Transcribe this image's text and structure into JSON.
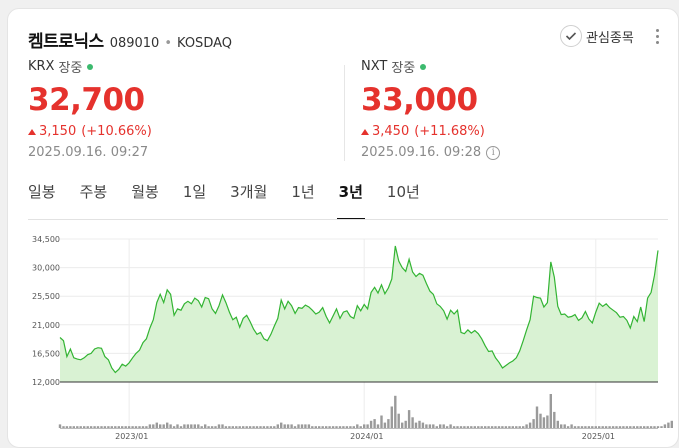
{
  "header": {
    "name": "켐트로닉스",
    "code": "089010",
    "separator": "•",
    "market": "KOSDAQ",
    "watch_label": "관심종목"
  },
  "krx": {
    "exchange": "KRX",
    "status": "장중",
    "price": "32,700",
    "change": "3,150",
    "change_pct": "(+10.66%)",
    "time": "2025.09.16. 09:27"
  },
  "nxt": {
    "exchange": "NXT",
    "status": "장중",
    "price": "33,000",
    "change": "3,450",
    "change_pct": "(+11.68%)",
    "time": "2025.09.16. 09:28",
    "info_glyph": "i"
  },
  "tabs": [
    {
      "label": "일봉"
    },
    {
      "label": "주봉"
    },
    {
      "label": "월봉"
    },
    {
      "label": "1일"
    },
    {
      "label": "3개월"
    },
    {
      "label": "1년"
    },
    {
      "label": "3년",
      "active": true
    },
    {
      "label": "10년"
    }
  ],
  "colors": {
    "up": "#e5322d",
    "line": "#33b433",
    "area": "#d9f2d3",
    "volume": "#9a9a9a"
  },
  "chart_data": {
    "type": "area",
    "ylim": [
      12000,
      34500
    ],
    "yticks": [
      "34,500",
      "30,000",
      "25,500",
      "21,000",
      "16,500",
      "12,000"
    ],
    "ytick_values": [
      34500,
      30000,
      25500,
      21000,
      16500,
      12000
    ],
    "xticks": [
      "2023/01",
      "2024/01",
      "2025/01"
    ],
    "xtick_index": [
      20,
      88,
      155
    ],
    "price_values": [
      19000,
      18500,
      16000,
      17200,
      15800,
      15600,
      15500,
      15800,
      16300,
      16500,
      17200,
      17400,
      17300,
      16000,
      15500,
      14200,
      13500,
      14000,
      14800,
      14500,
      15000,
      15800,
      16500,
      17000,
      18200,
      18800,
      20500,
      21800,
      24500,
      25800,
      24500,
      26500,
      25800,
      22500,
      23500,
      23300,
      24300,
      24700,
      24300,
      25200,
      24800,
      23800,
      25300,
      25100,
      23500,
      22800,
      24000,
      25700,
      24500,
      23000,
      21800,
      22200,
      20600,
      22000,
      22500,
      21500,
      20300,
      19500,
      19800,
      18800,
      18500,
      19500,
      20800,
      22000,
      24900,
      23500,
      24700,
      24000,
      22800,
      23700,
      23600,
      24100,
      23800,
      23300,
      22700,
      23000,
      23700,
      22300,
      21300,
      22400,
      23500,
      22000,
      23000,
      23200,
      22300,
      22000,
      24000,
      23200,
      24200,
      23500,
      26100,
      26900,
      26000,
      27300,
      25900,
      26800,
      28200,
      33400,
      31000,
      30000,
      29400,
      31300,
      29300,
      28600,
      29100,
      28800,
      27500,
      26300,
      25800,
      24300,
      23900,
      23200,
      21900,
      23300,
      22700,
      23300,
      19800,
      19600,
      20200,
      19700,
      20100,
      19600,
      18800,
      17700,
      16800,
      16900,
      15800,
      15100,
      14200,
      14600,
      15000,
      15300,
      15800,
      16900,
      18500,
      20200,
      21800,
      25500,
      25300,
      25200,
      23800,
      24500,
      30900,
      28500,
      23900,
      22600,
      22700,
      22200,
      22300,
      22600,
      21700,
      22100,
      23100,
      21900,
      21300,
      23000,
      24400,
      23900,
      24300,
      23700,
      23300,
      22900,
      22200,
      22300,
      21700,
      20500,
      22300,
      21500,
      23800,
      21500,
      25200,
      26100,
      28800,
      32700
    ],
    "volume_values": [
      2,
      1,
      1,
      1,
      1,
      1,
      1,
      1,
      1,
      1,
      1,
      1,
      1,
      1,
      1,
      1,
      1,
      1,
      1,
      1,
      1,
      1,
      1,
      1,
      1,
      1,
      2,
      2,
      3,
      2,
      2,
      3,
      2,
      1,
      2,
      1,
      2,
      2,
      2,
      2,
      2,
      1,
      2,
      1,
      1,
      1,
      2,
      2,
      1,
      1,
      1,
      1,
      1,
      1,
      1,
      1,
      1,
      1,
      1,
      1,
      1,
      1,
      1,
      2,
      3,
      2,
      2,
      2,
      1,
      2,
      2,
      2,
      2,
      1,
      1,
      1,
      1,
      1,
      1,
      1,
      1,
      1,
      1,
      1,
      1,
      1,
      2,
      1,
      2,
      2,
      4,
      5,
      2,
      7,
      3,
      5,
      12,
      18,
      8,
      3,
      4,
      10,
      6,
      3,
      4,
      3,
      2,
      2,
      2,
      1,
      2,
      2,
      1,
      2,
      1,
      1,
      1,
      1,
      1,
      1,
      1,
      1,
      1,
      1,
      1,
      1,
      1,
      1,
      1,
      1,
      1,
      1,
      1,
      1,
      1,
      2,
      3,
      5,
      12,
      8,
      6,
      7,
      19,
      9,
      4,
      2,
      2,
      1,
      2,
      1,
      1,
      1,
      1,
      1,
      1,
      1,
      1,
      1,
      1,
      1,
      1,
      1,
      1,
      1,
      1,
      1,
      1,
      1,
      1,
      1,
      1,
      1,
      1,
      1,
      1,
      2,
      3,
      4
    ]
  }
}
